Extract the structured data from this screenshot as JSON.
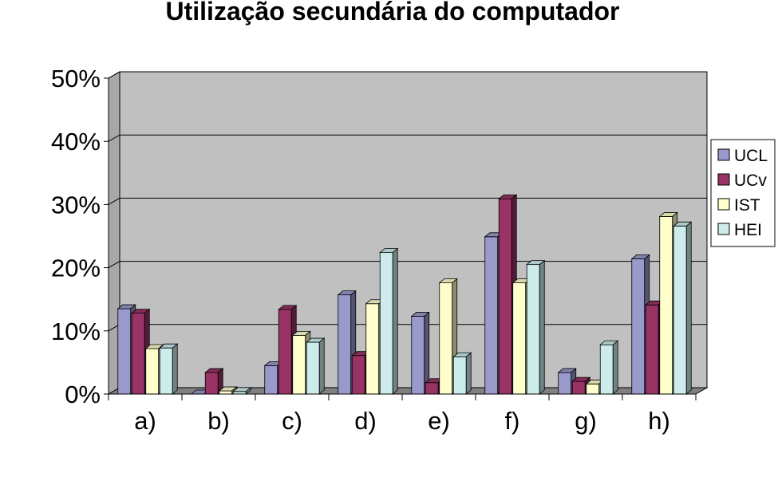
{
  "chart_data": {
    "type": "bar",
    "title": "Utilização secundária do computador",
    "xlabel": "",
    "ylabel": "",
    "ylim": [
      0,
      50
    ],
    "y_ticks": [
      "0%",
      "10%",
      "20%",
      "30%",
      "40%",
      "50%"
    ],
    "y_tick_values": [
      0,
      10,
      20,
      30,
      40,
      50
    ],
    "categories": [
      "a)",
      "b)",
      "c)",
      "d)",
      "e)",
      "f)",
      "g)",
      "h)"
    ],
    "series": [
      {
        "name": "UCL",
        "color": "#9999cc",
        "values": [
          13.5,
          0,
          4.5,
          15.7,
          12.3,
          24.9,
          3.4,
          21.4
        ]
      },
      {
        "name": "UCv",
        "color": "#993366",
        "values": [
          12.8,
          3.4,
          13.4,
          6.1,
          1.8,
          30.9,
          2.0,
          14.1
        ]
      },
      {
        "name": "IST",
        "color": "#ffffcc",
        "values": [
          7.2,
          0.5,
          9.3,
          14.3,
          17.6,
          17.6,
          1.6,
          28.1
        ]
      },
      {
        "name": "HEI",
        "color": "#ccecec",
        "values": [
          7.3,
          0.4,
          8.2,
          22.4,
          5.9,
          20.5,
          7.8,
          26.6
        ]
      }
    ],
    "grid": true,
    "legend_position": "right",
    "plot_background": "#c0c0c0"
  }
}
